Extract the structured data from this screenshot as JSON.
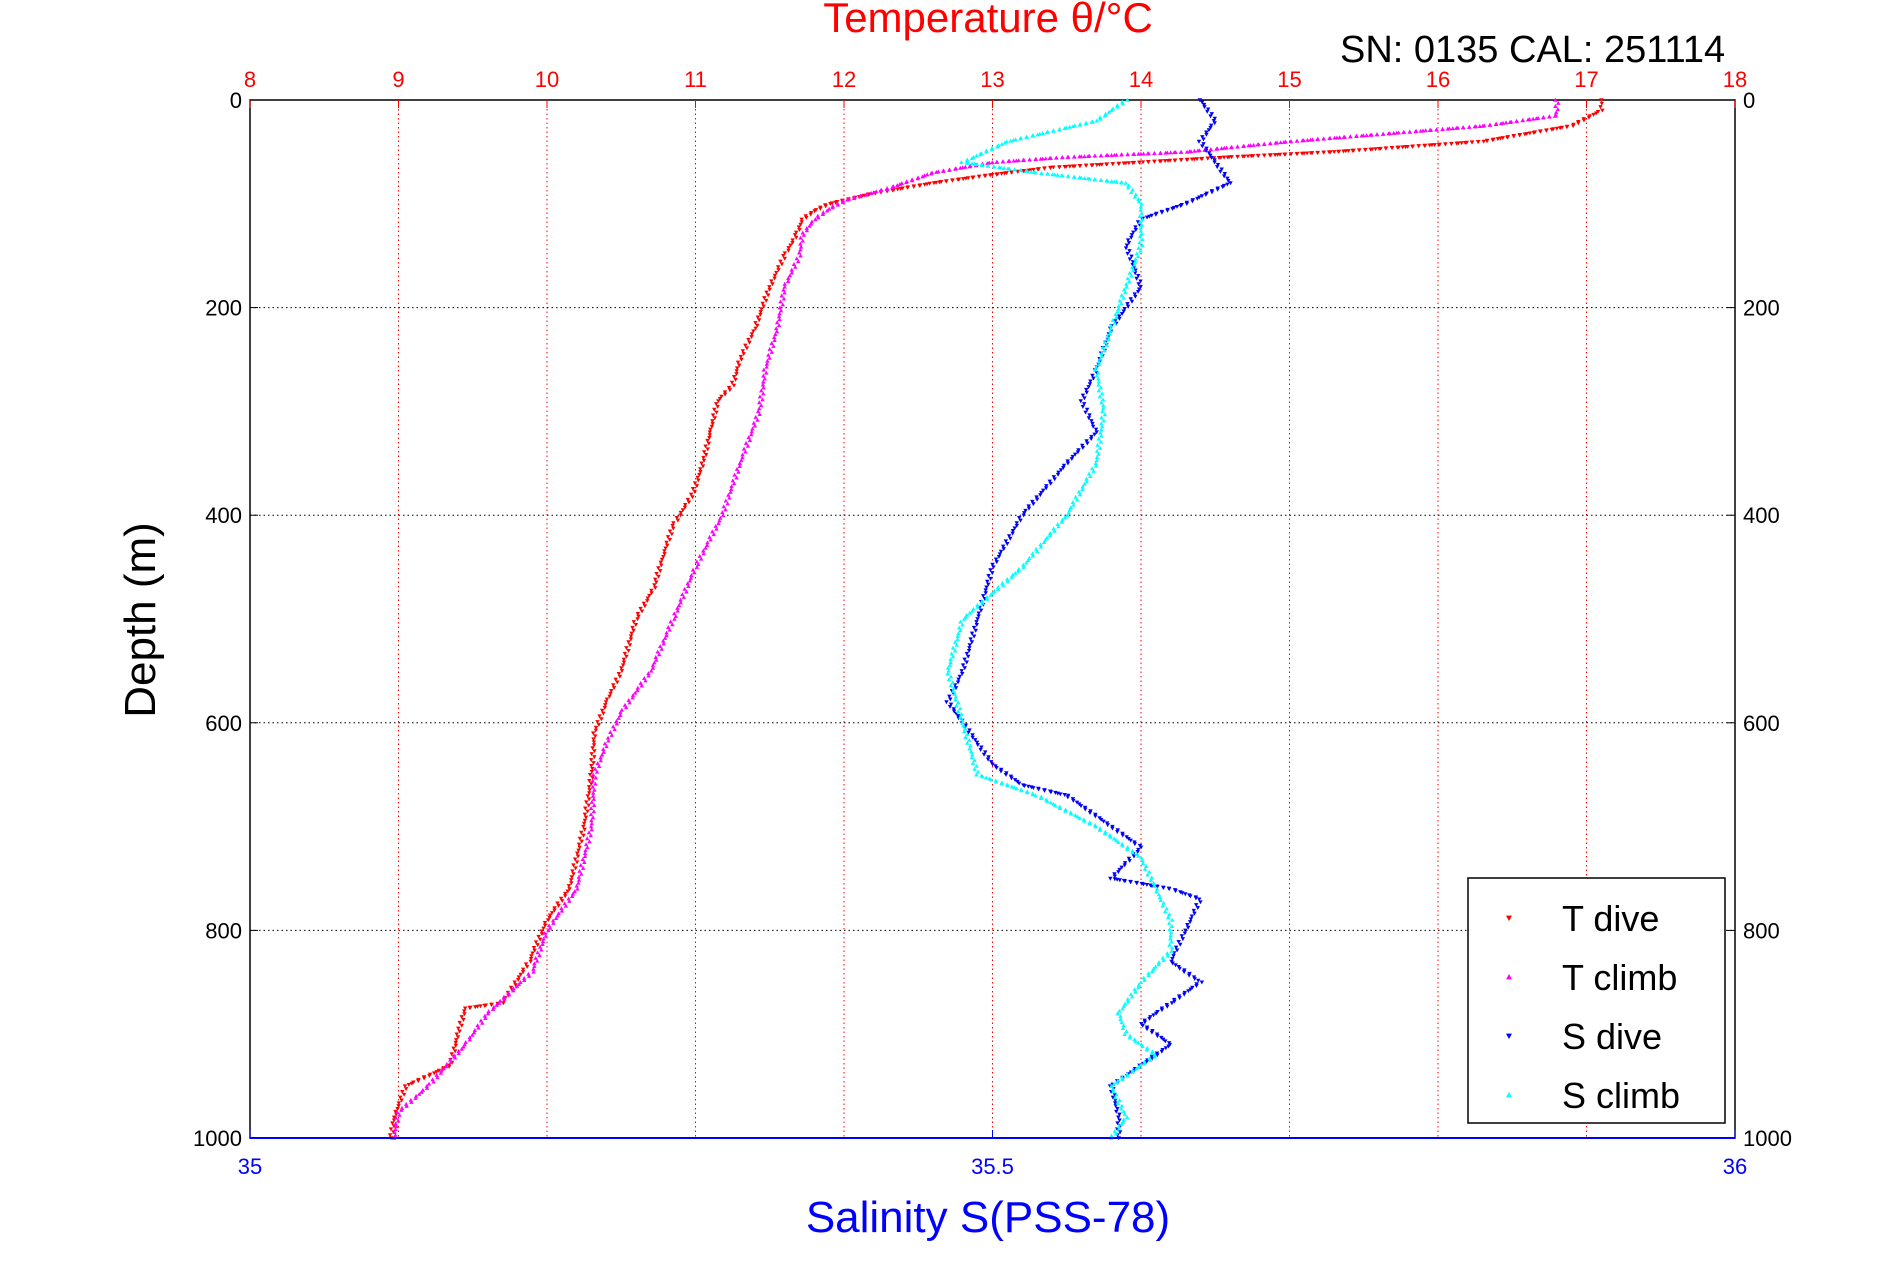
{
  "chart_data": {
    "type": "scatter",
    "title": "Temperature θ/°C",
    "subtitle": "SN: 0135  CAL: 251114",
    "xlabel": "Salinity S(PSS-78)",
    "ylabel": "Depth (m)",
    "x_top": {
      "range": [
        8,
        18
      ],
      "ticks": [
        "8",
        "9",
        "10",
        "11",
        "12",
        "13",
        "14",
        "15",
        "16",
        "17",
        "18"
      ],
      "color": "#ff0000"
    },
    "x_bottom": {
      "range": [
        35,
        36
      ],
      "ticks": [
        "35",
        "35.5",
        "36"
      ],
      "tick_values": [
        35,
        35.5,
        36
      ],
      "color": "#0000ff"
    },
    "y": {
      "range": [
        0,
        1000
      ],
      "reversed": true,
      "ticks": [
        "0",
        "200",
        "400",
        "600",
        "800",
        "1000"
      ],
      "tick_values": [
        0,
        200,
        400,
        600,
        800,
        1000
      ]
    },
    "grid": true,
    "legend_position": "bottom-right",
    "series": [
      {
        "name": "T dive",
        "axis": "top",
        "color": "#ff0000",
        "marker": "triangle-down",
        "points": [
          [
            17.1,
            0
          ],
          [
            17.1,
            10
          ],
          [
            16.9,
            25
          ],
          [
            16.3,
            40
          ],
          [
            15.3,
            50
          ],
          [
            14.6,
            55
          ],
          [
            14.0,
            60
          ],
          [
            13.4,
            65
          ],
          [
            13.0,
            72
          ],
          [
            12.6,
            80
          ],
          [
            12.2,
            90
          ],
          [
            11.9,
            100
          ],
          [
            11.8,
            107
          ],
          [
            11.72,
            115
          ],
          [
            11.68,
            130
          ],
          [
            11.6,
            150
          ],
          [
            11.5,
            180
          ],
          [
            11.4,
            220
          ],
          [
            11.3,
            250
          ],
          [
            11.25,
            275
          ],
          [
            11.15,
            290
          ],
          [
            11.1,
            320
          ],
          [
            11.05,
            350
          ],
          [
            10.98,
            380
          ],
          [
            10.85,
            410
          ],
          [
            10.78,
            440
          ],
          [
            10.72,
            470
          ],
          [
            10.6,
            500
          ],
          [
            10.5,
            550
          ],
          [
            10.4,
            580
          ],
          [
            10.32,
            610
          ],
          [
            10.3,
            650
          ],
          [
            10.25,
            700
          ],
          [
            10.15,
            760
          ],
          [
            10.0,
            790
          ],
          [
            9.88,
            830
          ],
          [
            9.7,
            870
          ],
          [
            9.45,
            875
          ],
          [
            9.4,
            900
          ],
          [
            9.35,
            930
          ],
          [
            9.05,
            950
          ],
          [
            8.97,
            980
          ],
          [
            8.95,
            1000
          ]
        ]
      },
      {
        "name": "T climb",
        "axis": "top",
        "color": "#ff00ff",
        "marker": "triangle-up",
        "points": [
          [
            16.8,
            0
          ],
          [
            16.8,
            15
          ],
          [
            16.3,
            25
          ],
          [
            15.0,
            40
          ],
          [
            14.3,
            50
          ],
          [
            13.5,
            55
          ],
          [
            13.0,
            60
          ],
          [
            12.6,
            70
          ],
          [
            12.3,
            85
          ],
          [
            12.0,
            97
          ],
          [
            11.9,
            105
          ],
          [
            11.8,
            115
          ],
          [
            11.72,
            130
          ],
          [
            11.7,
            150
          ],
          [
            11.6,
            180
          ],
          [
            11.55,
            220
          ],
          [
            11.47,
            260
          ],
          [
            11.43,
            300
          ],
          [
            11.3,
            350
          ],
          [
            11.18,
            400
          ],
          [
            11.0,
            450
          ],
          [
            10.85,
            500
          ],
          [
            10.7,
            550
          ],
          [
            10.5,
            590
          ],
          [
            10.4,
            620
          ],
          [
            10.32,
            650
          ],
          [
            10.3,
            700
          ],
          [
            10.2,
            760
          ],
          [
            10.0,
            800
          ],
          [
            9.9,
            840
          ],
          [
            9.6,
            880
          ],
          [
            9.45,
            910
          ],
          [
            9.2,
            950
          ],
          [
            9.0,
            975
          ],
          [
            8.97,
            1000
          ]
        ]
      },
      {
        "name": "S dive",
        "axis": "bottom",
        "color": "#0000ff",
        "marker": "triangle-down",
        "points": [
          [
            35.64,
            0
          ],
          [
            35.65,
            20
          ],
          [
            35.64,
            40
          ],
          [
            35.65,
            60
          ],
          [
            35.66,
            80
          ],
          [
            35.63,
            100
          ],
          [
            35.6,
            115
          ],
          [
            35.59,
            140
          ],
          [
            35.6,
            180
          ],
          [
            35.58,
            220
          ],
          [
            35.57,
            260
          ],
          [
            35.56,
            290
          ],
          [
            35.57,
            320
          ],
          [
            35.55,
            350
          ],
          [
            35.52,
            400
          ],
          [
            35.5,
            450
          ],
          [
            35.49,
            500
          ],
          [
            35.48,
            550
          ],
          [
            35.47,
            580
          ],
          [
            35.48,
            600
          ],
          [
            35.5,
            640
          ],
          [
            35.52,
            660
          ],
          [
            35.55,
            670
          ],
          [
            35.58,
            700
          ],
          [
            35.6,
            720
          ],
          [
            35.58,
            750
          ],
          [
            35.62,
            760
          ],
          [
            35.64,
            770
          ],
          [
            35.63,
            800
          ],
          [
            35.62,
            830
          ],
          [
            35.64,
            850
          ],
          [
            35.62,
            870
          ],
          [
            35.6,
            890
          ],
          [
            35.62,
            910
          ],
          [
            35.6,
            930
          ],
          [
            35.58,
            950
          ],
          [
            35.585,
            980
          ],
          [
            35.585,
            1000
          ]
        ]
      },
      {
        "name": "S climb",
        "axis": "bottom",
        "color": "#00ffff",
        "marker": "triangle-up",
        "points": [
          [
            35.59,
            0
          ],
          [
            35.57,
            20
          ],
          [
            35.51,
            40
          ],
          [
            35.48,
            60
          ],
          [
            35.53,
            70
          ],
          [
            35.59,
            80
          ],
          [
            35.6,
            100
          ],
          [
            35.6,
            115
          ],
          [
            35.6,
            140
          ],
          [
            35.59,
            180
          ],
          [
            35.58,
            220
          ],
          [
            35.57,
            260
          ],
          [
            35.575,
            300
          ],
          [
            35.57,
            350
          ],
          [
            35.55,
            400
          ],
          [
            35.52,
            450
          ],
          [
            35.48,
            500
          ],
          [
            35.47,
            550
          ],
          [
            35.48,
            600
          ],
          [
            35.49,
            650
          ],
          [
            35.53,
            670
          ],
          [
            35.57,
            700
          ],
          [
            35.6,
            730
          ],
          [
            35.61,
            760
          ],
          [
            35.62,
            790
          ],
          [
            35.62,
            820
          ],
          [
            35.6,
            850
          ],
          [
            35.585,
            880
          ],
          [
            35.59,
            900
          ],
          [
            35.61,
            920
          ],
          [
            35.58,
            950
          ],
          [
            35.59,
            980
          ],
          [
            35.58,
            1000
          ]
        ]
      }
    ]
  }
}
